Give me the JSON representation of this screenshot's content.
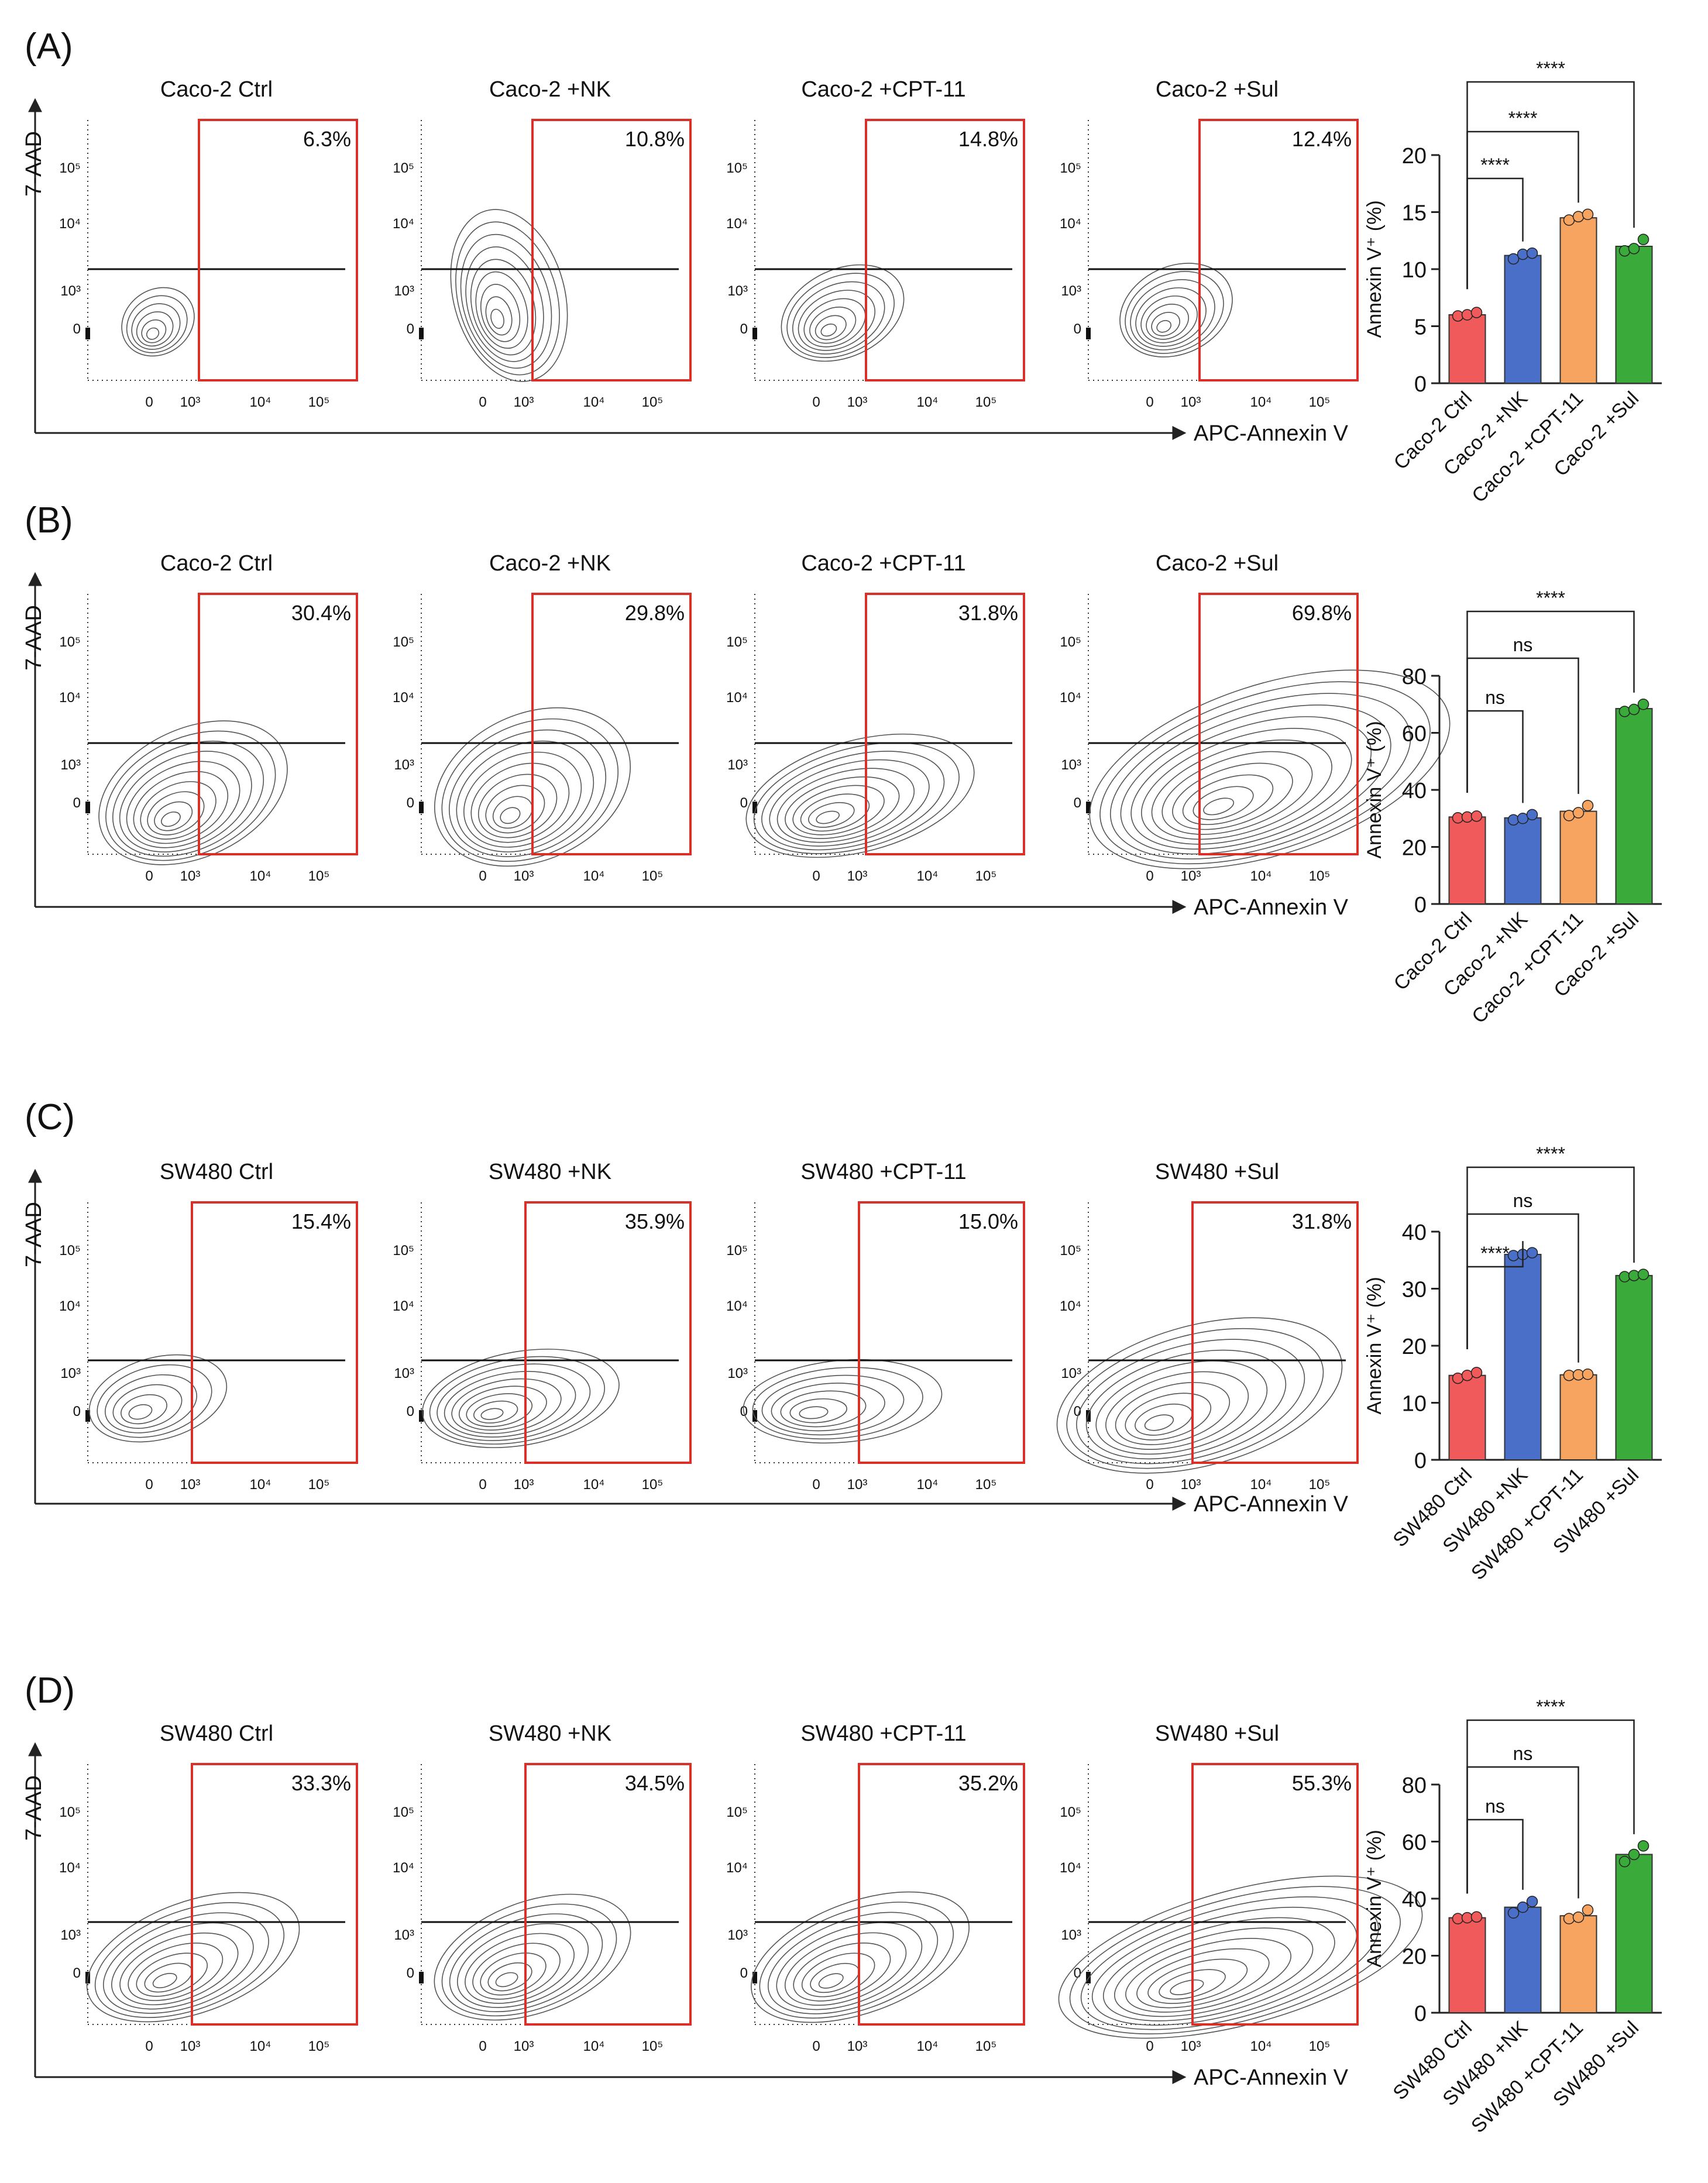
{
  "figure": {
    "y_axis_label": "7-AAD",
    "x_axis_label": "APC-Annexin V",
    "flow_y_ticks": [
      "10⁵",
      "10⁴",
      "10³",
      "0"
    ],
    "flow_x_ticks": [
      "0",
      "10³",
      "10⁴",
      "10⁵"
    ],
    "bar_ylabel": "Annexin V⁺ (%)",
    "colors": {
      "ctrl": "#f05a5a",
      "nk": "#4a6fc9",
      "cpt": "#f7a460",
      "sul": "#3aaa3a",
      "gate": "#d9302a"
    }
  },
  "panels": [
    {
      "label": "(A)",
      "flow_titles": [
        "Caco-2 Ctrl",
        "Caco-2 +NK",
        "Caco-2 +CPT-11",
        "Caco-2 +Sul"
      ],
      "flow_percents": [
        "6.3%",
        "10.8%",
        "14.8%",
        "12.4%"
      ]
    },
    {
      "label": "(B)",
      "flow_titles": [
        "Caco-2 Ctrl",
        "Caco-2 +NK",
        "Caco-2 +CPT-11",
        "Caco-2 +Sul"
      ],
      "flow_percents": [
        "30.4%",
        "29.8%",
        "31.8%",
        "69.8%"
      ]
    },
    {
      "label": "(C)",
      "flow_titles": [
        "SW480 Ctrl",
        "SW480 +NK",
        "SW480 +CPT-11",
        "SW480 +Sul"
      ],
      "flow_percents": [
        "15.4%",
        "35.9%",
        "15.0%",
        "31.8%"
      ]
    },
    {
      "label": "(D)",
      "flow_titles": [
        "SW480 Ctrl",
        "SW480 +NK",
        "SW480 +CPT-11",
        "SW480 +Sul"
      ],
      "flow_percents": [
        "33.3%",
        "34.5%",
        "35.2%",
        "55.3%"
      ]
    }
  ],
  "chart_data": [
    {
      "type": "bar",
      "panel": "(A)",
      "categories": [
        "Caco-2 Ctrl",
        "Caco-2 +NK",
        "Caco-2 +CPT-11",
        "Caco-2 +Sul"
      ],
      "values": [
        6.0,
        11.2,
        14.5,
        12.0
      ],
      "points": [
        [
          5.9,
          6.0,
          6.2
        ],
        [
          10.9,
          11.3,
          11.4
        ],
        [
          14.3,
          14.6,
          14.8
        ],
        [
          11.6,
          11.8,
          12.6
        ]
      ],
      "ylabel": "Annexin V⁺ (%)",
      "ylim": [
        0,
        20
      ],
      "yticks": [
        0,
        5,
        10,
        15,
        20
      ],
      "comparisons": [
        {
          "from": 0,
          "to": 1,
          "label": "****"
        },
        {
          "from": 0,
          "to": 2,
          "label": "****"
        },
        {
          "from": 0,
          "to": 3,
          "label": "****"
        }
      ]
    },
    {
      "type": "bar",
      "panel": "(B)",
      "categories": [
        "Caco-2 Ctrl",
        "Caco-2 +NK",
        "Caco-2 +CPT-11",
        "Caco-2 +Sul"
      ],
      "values": [
        30.5,
        30.2,
        32.5,
        68.5
      ],
      "points": [
        [
          30.2,
          30.5,
          30.8
        ],
        [
          29.5,
          30.0,
          31.3
        ],
        [
          31.0,
          32.0,
          34.5
        ],
        [
          67.5,
          68.2,
          70.0
        ]
      ],
      "ylabel": "Annexin V⁺ (%)",
      "ylim": [
        0,
        80
      ],
      "yticks": [
        0,
        20,
        40,
        60,
        80
      ],
      "comparisons": [
        {
          "from": 0,
          "to": 1,
          "label": "ns"
        },
        {
          "from": 0,
          "to": 2,
          "label": "ns"
        },
        {
          "from": 0,
          "to": 3,
          "label": "****"
        }
      ]
    },
    {
      "type": "bar",
      "panel": "(C)",
      "categories": [
        "SW480 Ctrl",
        "SW480 +NK",
        "SW480 +CPT-11",
        "SW480 +Sul"
      ],
      "values": [
        14.8,
        36.0,
        14.9,
        32.3
      ],
      "points": [
        [
          14.3,
          14.8,
          15.3
        ],
        [
          35.8,
          36.0,
          36.3
        ],
        [
          14.8,
          14.9,
          15.0
        ],
        [
          32.1,
          32.3,
          32.5
        ]
      ],
      "ylabel": "Annexin V⁺ (%)",
      "ylim": [
        0,
        40
      ],
      "yticks": [
        0,
        10,
        20,
        30,
        40
      ],
      "comparisons": [
        {
          "from": 0,
          "to": 1,
          "label": "****"
        },
        {
          "from": 0,
          "to": 2,
          "label": "ns"
        },
        {
          "from": 0,
          "to": 3,
          "label": "****"
        }
      ]
    },
    {
      "type": "bar",
      "panel": "(D)",
      "categories": [
        "SW480 Ctrl",
        "SW480 +NK",
        "SW480 +CPT-11",
        "SW480 +Sul"
      ],
      "values": [
        33.3,
        37.0,
        34.0,
        55.5
      ],
      "points": [
        [
          33.0,
          33.3,
          33.6
        ],
        [
          35.0,
          37.0,
          39.0
        ],
        [
          33.0,
          33.5,
          36.0
        ],
        [
          53.0,
          55.5,
          58.5
        ]
      ],
      "ylabel": "Annexin V⁺ (%)",
      "ylim": [
        0,
        80
      ],
      "yticks": [
        0,
        20,
        40,
        60,
        80
      ],
      "comparisons": [
        {
          "from": 0,
          "to": 1,
          "label": "ns"
        },
        {
          "from": 0,
          "to": 2,
          "label": "ns"
        },
        {
          "from": 0,
          "to": 3,
          "label": "****"
        }
      ]
    }
  ]
}
